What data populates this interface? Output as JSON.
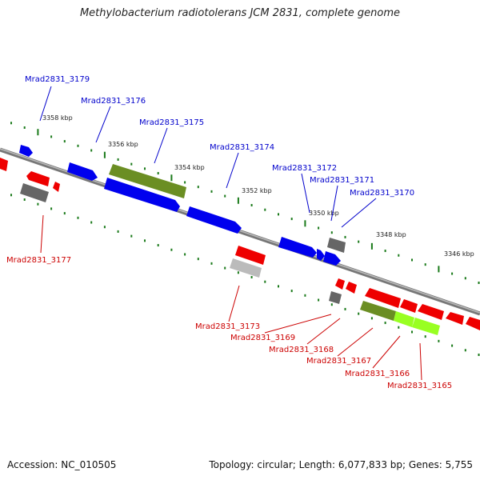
{
  "title": "Methylobacterium radiotolerans JCM 2831, complete genome",
  "accession": "Accession: NC_010505",
  "summary": "Topology: circular; Length: 6,077,833 bp; Genes: 5,755",
  "colors": {
    "backbone": "#888888",
    "forward_label": "#0000cc",
    "reverse_label": "#cc0000",
    "tick": "#1a7a1a",
    "blue": "#0000ee",
    "red": "#ee0000",
    "olive": "#6b8e23",
    "gray": "#666666",
    "lightgray": "#bbbbbb",
    "lime": "#99ff22"
  },
  "kbp_ticks": [
    "3358 kbp",
    "3356 kbp",
    "3354 kbp",
    "3352 kbp",
    "3350 kbp",
    "3348 kbp",
    "3346 kbp"
  ],
  "forward_genes": [
    "Mrad2831_3179",
    "Mrad2831_3176",
    "Mrad2831_3175",
    "Mrad2831_3174",
    "Mrad2831_3172",
    "Mrad2831_3171",
    "Mrad2831_3170"
  ],
  "reverse_genes": [
    "Mrad2831_3177",
    "Mrad2831_3173",
    "Mrad2831_3169",
    "Mrad2831_3168",
    "Mrad2831_3167",
    "Mrad2831_3166",
    "Mrad2831_3165"
  ]
}
